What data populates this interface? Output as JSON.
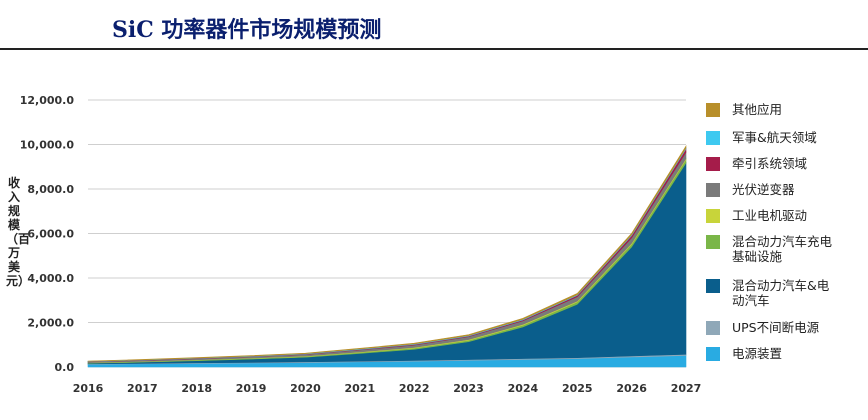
{
  "header": {
    "title": "SiC 功率器件市场规模预测"
  },
  "chart_data": {
    "type": "area",
    "stacked": true,
    "title": "",
    "xlabel": "",
    "ylabel": "收入规模（百万美元）",
    "x": [
      "2016",
      "2017",
      "2018",
      "2019",
      "2020",
      "2021",
      "2022",
      "2023",
      "2024",
      "2025",
      "2026",
      "2027"
    ],
    "ylim": [
      0,
      12000
    ],
    "yticks": [
      "0.0",
      "2,000.0",
      "4,000.0",
      "6,000.0",
      "8,000.0",
      "10,000.0",
      "12,000.0"
    ],
    "grid": true,
    "legend_position": "right",
    "series": [
      {
        "name": "电源装置",
        "color": "#29abe2",
        "values": [
          120,
          140,
          160,
          180,
          200,
          230,
          260,
          300,
          340,
          380,
          450,
          520
        ]
      },
      {
        "name": "UPS不间断电源",
        "color": "#8fa8b8",
        "values": [
          20,
          20,
          25,
          25,
          30,
          30,
          35,
          35,
          40,
          40,
          45,
          50
        ]
      },
      {
        "name": "混合动力汽车&电动汽车",
        "color": "#0a5e8c",
        "values": [
          30,
          60,
          100,
          150,
          210,
          350,
          500,
          800,
          1420,
          2400,
          4900,
          8600
        ]
      },
      {
        "name": "混合动力汽车充电基础设施",
        "color": "#7ab648",
        "values": [
          15,
          20,
          25,
          30,
          35,
          45,
          55,
          65,
          80,
          100,
          125,
          150
        ]
      },
      {
        "name": "工业电机驱动",
        "color": "#c8d43a",
        "values": [
          10,
          12,
          14,
          16,
          18,
          22,
          26,
          30,
          35,
          40,
          45,
          50
        ]
      },
      {
        "name": "光伏逆变器",
        "color": "#7a7a7a",
        "values": [
          40,
          45,
          50,
          60,
          70,
          90,
          110,
          130,
          160,
          200,
          240,
          280
        ]
      },
      {
        "name": "牵引系统领域",
        "color": "#a51c4a",
        "values": [
          10,
          12,
          14,
          16,
          18,
          22,
          26,
          30,
          40,
          60,
          100,
          150
        ]
      },
      {
        "name": "军事&航天领域",
        "color": "#3ec9f0",
        "values": [
          10,
          12,
          14,
          16,
          18,
          20,
          22,
          25,
          28,
          30,
          35,
          40
        ]
      },
      {
        "name": "其他应用",
        "color": "#b88f2a",
        "values": [
          15,
          18,
          20,
          22,
          25,
          30,
          35,
          40,
          45,
          55,
          70,
          90
        ]
      }
    ]
  }
}
